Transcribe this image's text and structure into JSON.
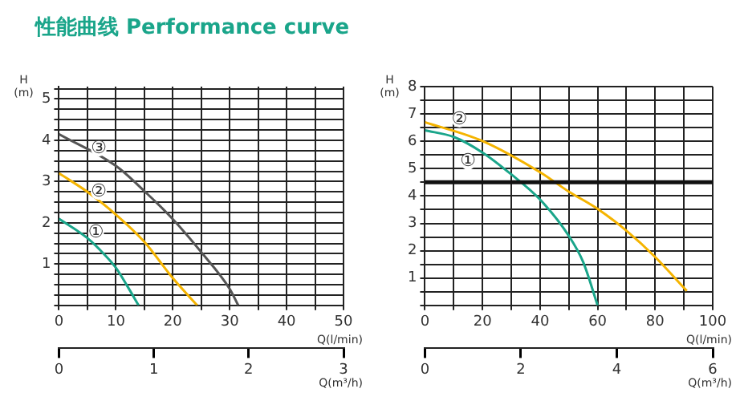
{
  "chart_data": [
    {
      "type": "line",
      "title": "性能曲线 Performance curve",
      "ylabel": "H (m)",
      "xlabel": "Q(l/min)",
      "x2label": "Q(m³/h)",
      "xlim": [
        0,
        50
      ],
      "xticks": [
        0,
        {
          "value": 5,
          "label": null
        },
        10,
        {
          "value": 15,
          "label": null
        },
        20,
        {
          "value": 25,
          "label": null
        },
        30,
        {
          "value": 35,
          "label": null
        },
        40,
        {
          "value": 45,
          "label": null
        },
        50
      ],
      "x2lim": [
        0,
        3
      ],
      "x2ticks": [
        0,
        1,
        2,
        3
      ],
      "ylim": [
        0,
        5.3
      ],
      "yticks": [
        {
          "value": 0,
          "label": null
        },
        {
          "value": 0.25,
          "label": null
        },
        {
          "value": 0.5,
          "label": null
        },
        {
          "value": 0.75,
          "label": null
        },
        1,
        {
          "value": 1.25,
          "label": null
        },
        {
          "value": 1.5,
          "label": null
        },
        {
          "value": 1.75,
          "label": null
        },
        2,
        {
          "value": 2.25,
          "label": null
        },
        {
          "value": 2.5,
          "label": null
        },
        {
          "value": 2.75,
          "label": null
        },
        3,
        {
          "value": 3.25,
          "label": null
        },
        {
          "value": 3.5,
          "label": null
        },
        {
          "value": 3.75,
          "label": null
        },
        4,
        {
          "value": 4.25,
          "label": null
        },
        {
          "value": 4.5,
          "label": null
        },
        {
          "value": 4.75,
          "label": null
        },
        5,
        {
          "value": 5.25,
          "label": null
        }
      ],
      "grid": true,
      "legend": false,
      "marker": "none",
      "line_style": "solid",
      "series": [
        {
          "color": "#1aa58a",
          "x": [
            0,
            5,
            8,
            10,
            12,
            14
          ],
          "values": [
            2.1,
            1.63,
            1.23,
            0.91,
            0.47,
            0
          ]
        },
        {
          "color": "#f5b400",
          "x": [
            0,
            5,
            10,
            15,
            20,
            24.3
          ],
          "values": [
            3.2,
            2.75,
            2.2,
            1.54,
            0.66,
            0
          ]
        },
        {
          "color": "#555555",
          "x": [
            0,
            10,
            15,
            20,
            25,
            30,
            31.5
          ],
          "values": [
            4.15,
            3.38,
            2.77,
            2.09,
            1.29,
            0.4,
            0
          ]
        }
      ],
      "annotations": [
        {
          "text": "①",
          "x": 6.5,
          "y": 1.75
        },
        {
          "text": "②",
          "x": 7,
          "y": 2.75
        },
        {
          "text": "③",
          "x": 7,
          "y": 3.8
        }
      ]
    },
    {
      "type": "line",
      "ylabel": "H (m)",
      "xlabel": "Q(l/min)",
      "x2label": "Q(m³/h)",
      "xlim": [
        0,
        100
      ],
      "xticks": [
        0,
        {
          "value": 10,
          "label": null
        },
        20,
        {
          "value": 30,
          "label": null
        },
        40,
        {
          "value": 50,
          "label": null
        },
        60,
        {
          "value": 70,
          "label": null
        },
        80,
        {
          "value": 90,
          "label": null
        },
        100
      ],
      "x2lim": [
        0,
        6
      ],
      "x2ticks": [
        0,
        2,
        4,
        6
      ],
      "ylim": [
        0,
        8
      ],
      "yticks": [
        {
          "value": 0,
          "label": null
        },
        {
          "value": 0.5,
          "label": null
        },
        1,
        {
          "value": 1.5,
          "label": null
        },
        2,
        {
          "value": 2.5,
          "label": null
        },
        3,
        {
          "value": 3.5,
          "label": null
        },
        4,
        {
          "value": 4.5,
          "label": null
        },
        5,
        {
          "value": 5.5,
          "label": null
        },
        6,
        {
          "value": 6.5,
          "label": null
        },
        7,
        {
          "value": 7.5,
          "label": null
        },
        8
      ],
      "grid": true,
      "legend": false,
      "marker": "none",
      "line_style": "solid",
      "ref_lines": [
        {
          "axis": "y",
          "value": 4.5,
          "color": "#111111"
        }
      ],
      "series": [
        {
          "color": "#1aa58a",
          "x": [
            0,
            10,
            20,
            30,
            40,
            50,
            55,
            60
          ],
          "values": [
            6.4,
            6.16,
            5.59,
            4.79,
            3.87,
            2.54,
            1.58,
            0
          ]
        },
        {
          "color": "#f5b400",
          "x": [
            0,
            20,
            40,
            50,
            60,
            70,
            80,
            91
          ],
          "values": [
            6.7,
            6.01,
            4.87,
            4.16,
            3.53,
            2.73,
            1.77,
            0.53
          ]
        }
      ],
      "annotations": [
        {
          "text": "①",
          "x": 15,
          "y": 5.25
        },
        {
          "text": "②",
          "x": 12,
          "y": 6.8
        }
      ]
    }
  ]
}
